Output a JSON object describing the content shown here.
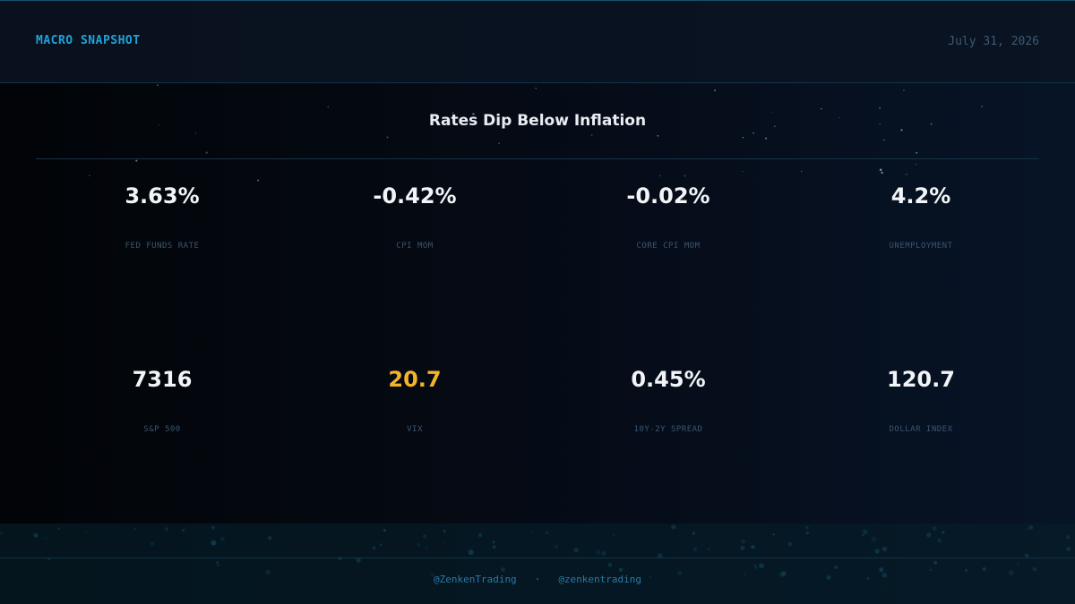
{
  "header": {
    "title": "MACRO SNAPSHOT",
    "date": "July 31, 2026"
  },
  "headline": "Rates Dip Below Inflation",
  "metrics": [
    {
      "value": "3.63%",
      "label": "FED FUNDS RATE",
      "color": "#f2f5f8"
    },
    {
      "value": "-0.42%",
      "label": "CPI MOM",
      "color": "#f2f5f8"
    },
    {
      "value": "-0.02%",
      "label": "CORE CPI MOM",
      "color": "#f2f5f8"
    },
    {
      "value": "4.2%",
      "label": "UNEMPLOYMENT",
      "color": "#f2f5f8"
    },
    {
      "value": "7316",
      "label": "S&P 500",
      "color": "#f2f5f8"
    },
    {
      "value": "20.7",
      "label": "VIX",
      "color": "#f5b32a"
    },
    {
      "value": "0.45%",
      "label": "10Y-2Y SPREAD",
      "color": "#f2f5f8"
    },
    {
      "value": "120.7",
      "label": "DOLLAR INDEX",
      "color": "#f2f5f8"
    }
  ],
  "footer": {
    "handles": [
      "@ZenkenTrading",
      "@zenkentrading"
    ],
    "separator": "·"
  }
}
